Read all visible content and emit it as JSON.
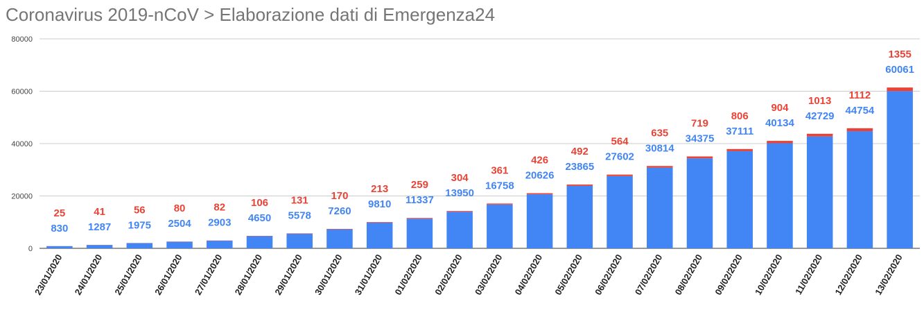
{
  "title": "Coronavirus 2019-nCoV > Elaborazione dati di Emergenza24",
  "colors": {
    "cases": "#4285f4",
    "deaths": "#ea4335",
    "grid": "#cccccc",
    "title": "#757575"
  },
  "chart_data": {
    "type": "bar",
    "stacked": true,
    "title": "Coronavirus 2019-nCoV > Elaborazione dati di Emergenza24",
    "categories": [
      "23/01/2020",
      "24/01/2020",
      "25/01/2020",
      "26/01/2020",
      "27/01/2020",
      "28/01/2020",
      "29/01/2020",
      "30/01/2020",
      "31/01/2020",
      "01/02/2020",
      "02/02/2020",
      "03/02/2020",
      "04/02/2020",
      "05/02/2020",
      "06/02/2020",
      "07/02/2020",
      "08/02/2020",
      "09/02/2020",
      "10/02/2020",
      "11/02/2020",
      "12/02/2020",
      "13/02/2020"
    ],
    "series": [
      {
        "color": "#4285f4",
        "values": [
          830,
          1287,
          1975,
          2504,
          2903,
          4650,
          5578,
          7260,
          9810,
          11337,
          13950,
          16758,
          20626,
          23865,
          27602,
          30814,
          34375,
          37111,
          40134,
          42729,
          44754,
          60061
        ]
      },
      {
        "color": "#ea4335",
        "values": [
          25,
          41,
          56,
          80,
          82,
          106,
          131,
          170,
          213,
          259,
          304,
          361,
          426,
          492,
          564,
          635,
          719,
          806,
          904,
          1013,
          1112,
          1355
        ]
      }
    ],
    "yticks": [
      "0",
      "20000",
      "40000",
      "60000",
      "80000"
    ],
    "ylim": [
      0,
      80000
    ],
    "grid": true,
    "legend": "none"
  }
}
